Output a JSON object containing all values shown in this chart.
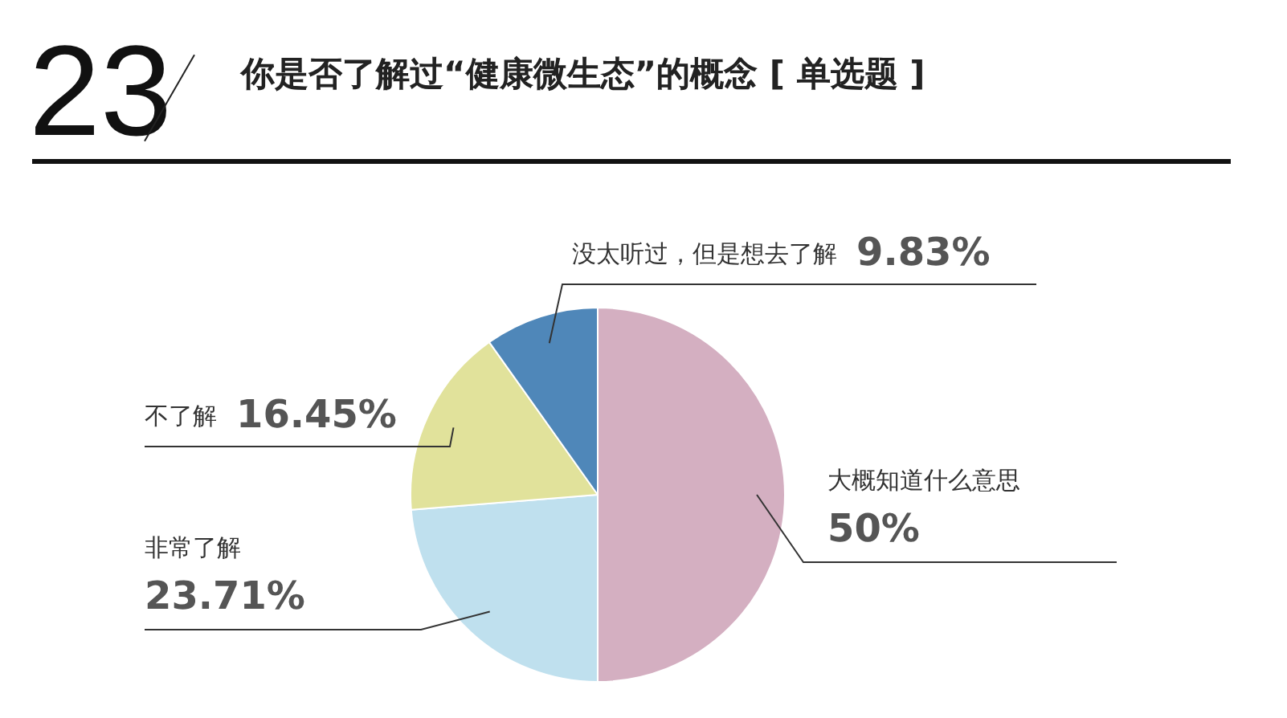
{
  "chart_data": {
    "type": "pie",
    "title": "你是否了解过“健康微生态”的概念 [ 单选题 ]",
    "annotations": [
      "23"
    ],
    "categories": [
      "大概知道什么意思",
      "非常了解",
      "不了解",
      "没太听过，但是想去了解"
    ],
    "values": [
      50,
      23.71,
      16.45,
      9.83
    ],
    "colors": [
      "#d4afc1",
      "#bfe0ee",
      "#e1e29b",
      "#4f87b9"
    ],
    "value_labels": [
      "50%",
      "23.71%",
      "16.45%",
      "9.83%"
    ],
    "legend": false
  }
}
